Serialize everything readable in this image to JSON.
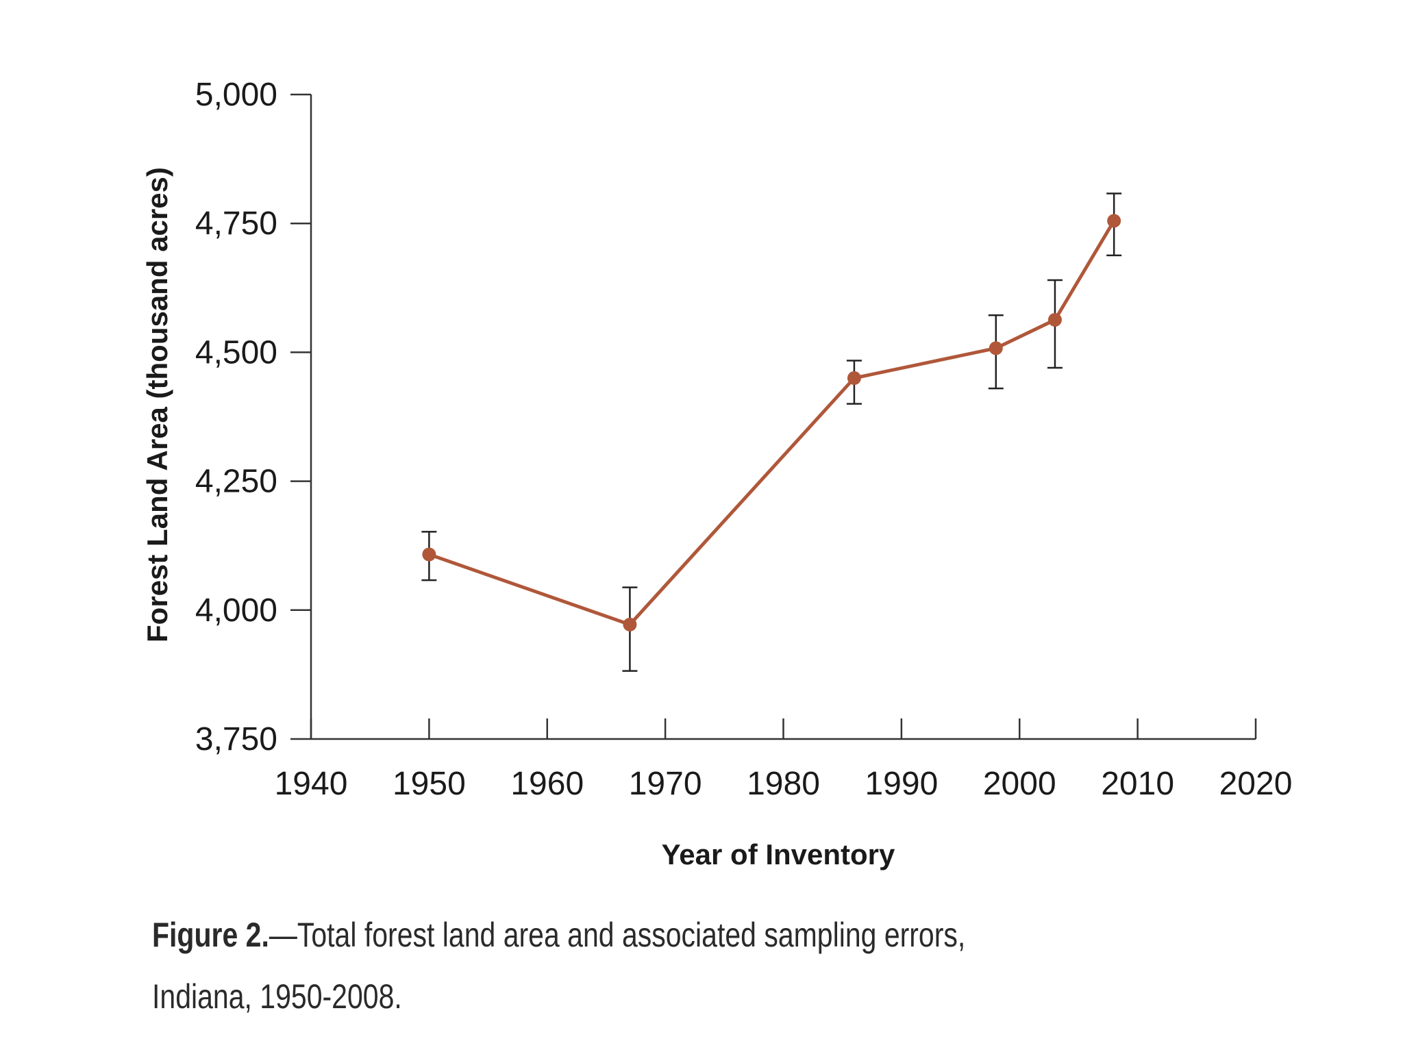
{
  "chart_data": {
    "type": "line",
    "title": "",
    "xlabel": "Year of Inventory",
    "ylabel": "Forest Land Area (thousand acres)",
    "xlim": [
      1940,
      2020
    ],
    "ylim": [
      3750,
      5000
    ],
    "x_ticks": [
      "1940",
      "1950",
      "1960",
      "1970",
      "1980",
      "1990",
      "2000",
      "2010",
      "2020"
    ],
    "y_ticks": [
      "3,750",
      "4,000",
      "4,250",
      "4,500",
      "4,750",
      "5,000"
    ],
    "grid": false,
    "legend": "none",
    "series": [
      {
        "color": "#b0573a",
        "points": [
          {
            "x": 1950,
            "y": 4108,
            "err_low": 4058,
            "err_high": 4152
          },
          {
            "x": 1967,
            "y": 3972,
            "err_low": 3882,
            "err_high": 4044
          },
          {
            "x": 1986,
            "y": 4450,
            "err_low": 4400,
            "err_high": 4484
          },
          {
            "x": 1998,
            "y": 4508,
            "err_low": 4430,
            "err_high": 4572
          },
          {
            "x": 2003,
            "y": 4563,
            "err_low": 4470,
            "err_high": 4640
          },
          {
            "x": 2008,
            "y": 4755,
            "err_low": 4688,
            "err_high": 4808
          }
        ]
      }
    ]
  },
  "caption": {
    "label": "Figure 2.",
    "text": "—Total forest land area and associated sampling errors, Indiana, 1950-2008."
  }
}
